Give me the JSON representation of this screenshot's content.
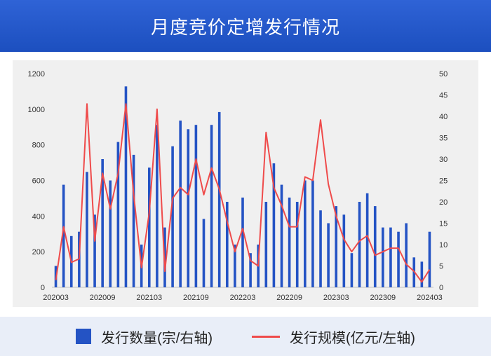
{
  "title": "月度竞价定增发行情况",
  "legend": {
    "bar_label": "发行数量(宗/右轴)",
    "line_label": "发行规模(亿元/左轴)"
  },
  "colors": {
    "bar": "#2453c4",
    "line": "#ef4b4b",
    "header": "#2456c9"
  },
  "chart_data": {
    "type": "bar",
    "title": "月度竞价定增发行情况",
    "months": [
      "202003",
      "202004",
      "202005",
      "202006",
      "202007",
      "202008",
      "202009",
      "202010",
      "202011",
      "202012",
      "202101",
      "202102",
      "202103",
      "202104",
      "202105",
      "202106",
      "202107",
      "202108",
      "202109",
      "202110",
      "202111",
      "202112",
      "202201",
      "202202",
      "202203",
      "202204",
      "202205",
      "202206",
      "202207",
      "202208",
      "202209",
      "202210",
      "202211",
      "202212",
      "202301",
      "202302",
      "202303",
      "202304",
      "202305",
      "202306",
      "202307",
      "202308",
      "202309",
      "202310",
      "202311",
      "202312",
      "202401",
      "202402",
      "202403"
    ],
    "x_tick_labels": [
      "202003",
      "202009",
      "202103",
      "202109",
      "202203",
      "202209",
      "202303",
      "202309",
      "202403"
    ],
    "left_axis": {
      "ticks": [
        0,
        200,
        400,
        600,
        800,
        1000,
        1200
      ],
      "ylim": [
        0,
        1200
      ]
    },
    "right_axis": {
      "ticks": [
        0,
        5,
        10,
        15,
        20,
        25,
        30,
        35,
        40,
        45,
        50
      ],
      "ylim": [
        0,
        50
      ]
    },
    "series": [
      {
        "name": "发行数量(宗/右轴)",
        "type": "bar",
        "axis": "right",
        "values": [
          5,
          24,
          12,
          13,
          27,
          17,
          30,
          25,
          34,
          47,
          31,
          10,
          28,
          38,
          14,
          33,
          39,
          37,
          38,
          16,
          38,
          41,
          20,
          10,
          21,
          8,
          10,
          20,
          29,
          24,
          21,
          20,
          25,
          25,
          18,
          15,
          19,
          17,
          8,
          20,
          22,
          19,
          14,
          14,
          13,
          15,
          7,
          6,
          13
        ]
      },
      {
        "name": "发行规模(亿元/左轴)",
        "type": "line",
        "axis": "left",
        "values": [
          40,
          340,
          140,
          160,
          1030,
          260,
          640,
          440,
          640,
          1030,
          520,
          110,
          420,
          1000,
          90,
          500,
          560,
          520,
          720,
          520,
          670,
          550,
          370,
          200,
          330,
          150,
          120,
          870,
          560,
          460,
          340,
          340,
          620,
          600,
          940,
          580,
          400,
          270,
          200,
          260,
          290,
          180,
          200,
          220,
          220,
          130,
          90,
          30,
          100
        ]
      }
    ]
  }
}
